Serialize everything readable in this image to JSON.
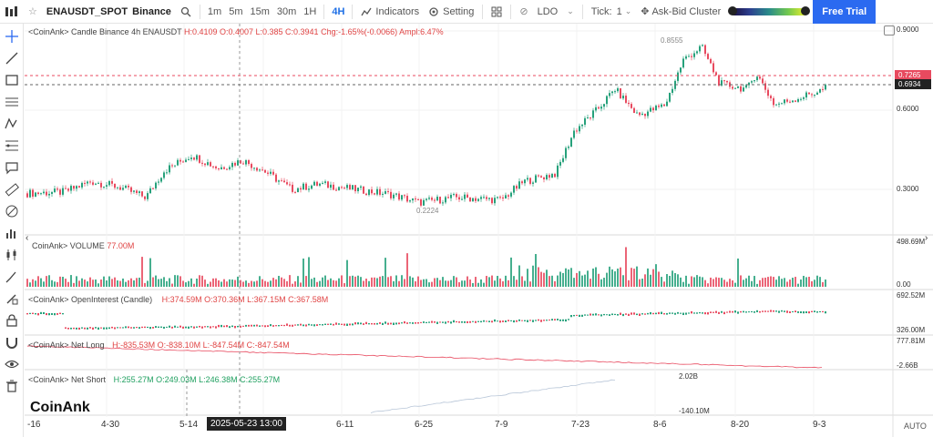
{
  "toolbar": {
    "symbol": "ENAUSDT_SPOT",
    "exchange": "Binance",
    "timeframes": [
      "1m",
      "5m",
      "15m",
      "30m",
      "1H",
      "4H"
    ],
    "active_timeframe": "4H",
    "indicators": "Indicators",
    "setting": "Setting",
    "ldo": "LDO",
    "tick_label": "Tick:",
    "tick_value": "1",
    "ask_bid": "Ask-Bid Cluster",
    "free_trial": "Free Trial"
  },
  "candle_panel": {
    "label_prefix": "<CoinAnk> Candle  Binance 4h ENAUSDT",
    "ohlc": "H:0.4109  O:0.4007  L:0.385  C:0.3941",
    "change": "Chg:-1.65%(-0.0066)  Ampl:6.47%",
    "y_ticks": [
      "0.9000",
      "0.6000",
      "0.3000"
    ],
    "high_marker": "0.8555",
    "low_marker": "0.2224",
    "price_red": "0.7265",
    "price_dark": "0.6934"
  },
  "volume_panel": {
    "label": "CoinAnk> VOLUME",
    "value": "77.00M",
    "y_top": "498.69M",
    "y_bottom": "0.00"
  },
  "oi_panel": {
    "label": "<CoinAnk> OpenInterest (Candle)",
    "values": "H:374.59M  O:370.36M  L:367.15M  C:367.58M",
    "y_top": "692.52M",
    "y_bottom": "326.00M"
  },
  "netlong_panel": {
    "label": "<CoinAnk> Net Long",
    "values": "H:-835.53M  O:-838.10M  L:-847.54M  C:-847.54M",
    "y_top": "777.81M",
    "y_bottom": "-2.66B"
  },
  "netshort_panel": {
    "label": "<CoinAnk> Net Short",
    "values": "H:255.27M  O:249.03M  L:246.38M  C:255.27M",
    "top_value": "2.02B",
    "bottom_value": "-140.10M"
  },
  "x_axis": [
    "-16",
    "4-30",
    "5-14",
    "6-11",
    "6-25",
    "7-9",
    "7-23",
    "8-6",
    "8-20",
    "9-3"
  ],
  "crosshair_time": "2025-05-23 13:00",
  "logo": "CoinAnk",
  "auto_label": "AUTO",
  "colors": {
    "up": "#26a17b",
    "down": "#e84a5f",
    "accent": "#2b6af0"
  }
}
